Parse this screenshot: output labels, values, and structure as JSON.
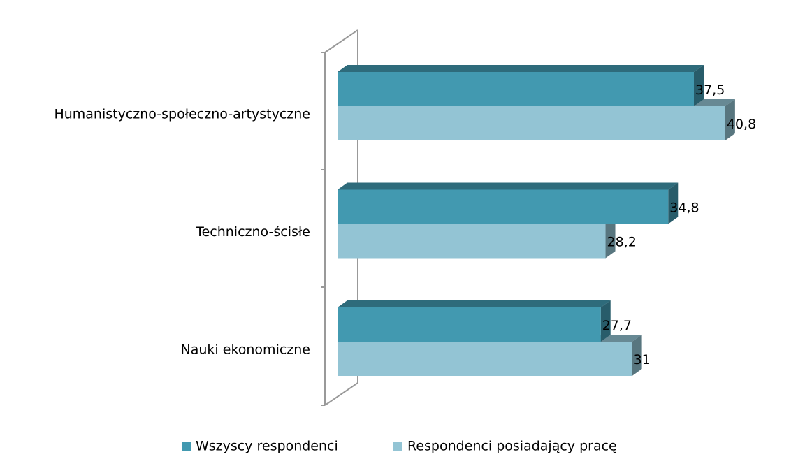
{
  "chart_data": {
    "type": "bar3d_horizontal",
    "categories": [
      "Humanistyczno-społeczno-artystyczne",
      "Techniczno-ścisłe",
      "Nauki ekonomiczne"
    ],
    "series": [
      {
        "name": "Wszyscy respondenci",
        "color": "#4299b0",
        "values": [
          37.5,
          34.8,
          27.7
        ],
        "value_labels": [
          "37,5",
          "34,8",
          "27,7"
        ]
      },
      {
        "name": "Respondenci posiadający pracę",
        "color": "#93c4d4",
        "values": [
          40.8,
          28.2,
          31
        ],
        "value_labels": [
          "40,8",
          "28,2",
          "31"
        ]
      }
    ],
    "legend": "bottom"
  }
}
